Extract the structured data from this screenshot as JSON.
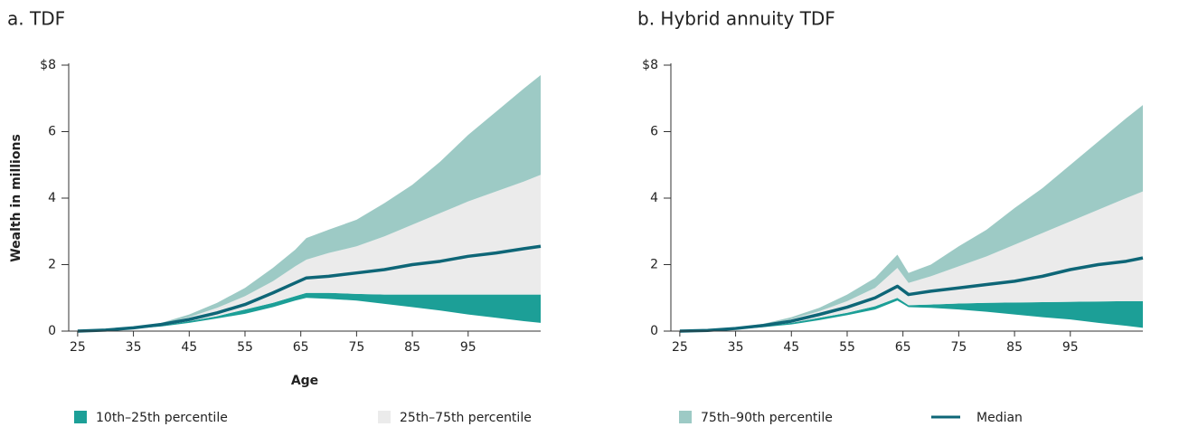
{
  "chart_data": [
    {
      "type": "area",
      "title": "a. TDF",
      "xlabel": "Age",
      "ylabel": "Wealth in millions",
      "x": [
        25,
        30,
        35,
        40,
        45,
        50,
        55,
        60,
        64,
        66,
        70,
        75,
        80,
        85,
        90,
        95,
        100,
        105,
        108
      ],
      "xlim": [
        23.4,
        108
      ],
      "xticks": [
        25,
        35,
        45,
        55,
        65,
        75,
        85,
        95
      ],
      "ylim": [
        0,
        8
      ],
      "yticks": [
        0,
        2,
        4,
        6,
        {
          "value": 8,
          "label": "$8"
        }
      ],
      "bands": [
        {
          "lower": [
            0,
            0.02,
            0.07,
            0.14,
            0.25,
            0.38,
            0.52,
            0.72,
            0.92,
            1.0,
            0.97,
            0.92,
            0.82,
            0.72,
            0.62,
            0.5,
            0.4,
            0.3,
            0.25
          ],
          "upper": [
            0,
            0.02,
            0.08,
            0.16,
            0.3,
            0.45,
            0.65,
            0.85,
            1.05,
            1.15,
            1.15,
            1.12,
            1.1,
            1.1,
            1.1,
            1.1,
            1.1,
            1.1,
            1.1
          ]
        },
        {
          "lower": [
            0,
            0.02,
            0.08,
            0.16,
            0.3,
            0.45,
            0.65,
            0.85,
            1.05,
            1.15,
            1.15,
            1.12,
            1.1,
            1.1,
            1.1,
            1.1,
            1.1,
            1.1,
            1.1
          ],
          "upper": [
            0,
            0.03,
            0.1,
            0.22,
            0.42,
            0.7,
            1.05,
            1.5,
            1.95,
            2.15,
            2.35,
            2.55,
            2.85,
            3.2,
            3.55,
            3.9,
            4.2,
            4.5,
            4.7
          ]
        },
        {
          "lower": [
            0,
            0.03,
            0.1,
            0.22,
            0.42,
            0.7,
            1.05,
            1.5,
            1.95,
            2.15,
            2.35,
            2.55,
            2.85,
            3.2,
            3.55,
            3.9,
            4.2,
            4.5,
            4.7
          ],
          "upper": [
            0,
            0.03,
            0.12,
            0.25,
            0.5,
            0.85,
            1.3,
            1.9,
            2.45,
            2.8,
            3.05,
            3.35,
            3.85,
            4.4,
            5.1,
            5.9,
            6.6,
            7.3,
            7.7
          ]
        }
      ],
      "median": [
        0,
        0.03,
        0.1,
        0.2,
        0.35,
        0.55,
        0.8,
        1.15,
        1.45,
        1.6,
        1.65,
        1.75,
        1.85,
        2.0,
        2.1,
        2.25,
        2.35,
        2.48,
        2.55
      ]
    },
    {
      "type": "area",
      "title": "b. Hybrid annuity TDF",
      "x": [
        25,
        30,
        35,
        40,
        45,
        50,
        55,
        60,
        64,
        66,
        70,
        75,
        80,
        85,
        90,
        95,
        100,
        105,
        108
      ],
      "xlim": [
        23.4,
        108
      ],
      "xticks": [
        25,
        35,
        45,
        55,
        65,
        75,
        85,
        95
      ],
      "ylim": [
        0,
        8
      ],
      "yticks": [
        0,
        2,
        4,
        6,
        {
          "value": 8,
          "label": "$8"
        }
      ],
      "bands": [
        {
          "lower": [
            0,
            0.02,
            0.05,
            0.12,
            0.2,
            0.33,
            0.48,
            0.65,
            0.92,
            0.72,
            0.7,
            0.65,
            0.58,
            0.5,
            0.42,
            0.35,
            0.25,
            0.16,
            0.1
          ],
          "upper": [
            0,
            0.02,
            0.06,
            0.14,
            0.25,
            0.4,
            0.55,
            0.75,
            1.0,
            0.78,
            0.8,
            0.83,
            0.85,
            0.86,
            0.87,
            0.88,
            0.89,
            0.9,
            0.9
          ]
        },
        {
          "lower": [
            0,
            0.02,
            0.06,
            0.14,
            0.25,
            0.4,
            0.55,
            0.75,
            1.0,
            0.78,
            0.8,
            0.83,
            0.85,
            0.86,
            0.87,
            0.88,
            0.89,
            0.9,
            0.9
          ],
          "upper": [
            0,
            0.03,
            0.09,
            0.19,
            0.36,
            0.6,
            0.9,
            1.3,
            1.9,
            1.45,
            1.65,
            1.95,
            2.25,
            2.6,
            2.95,
            3.3,
            3.65,
            4.0,
            4.2
          ]
        },
        {
          "lower": [
            0,
            0.03,
            0.09,
            0.19,
            0.36,
            0.6,
            0.9,
            1.3,
            1.9,
            1.45,
            1.65,
            1.95,
            2.25,
            2.6,
            2.95,
            3.3,
            3.65,
            4.0,
            4.2
          ],
          "upper": [
            0,
            0.03,
            0.1,
            0.22,
            0.42,
            0.7,
            1.1,
            1.6,
            2.3,
            1.75,
            2.0,
            2.55,
            3.05,
            3.7,
            4.3,
            5.0,
            5.7,
            6.4,
            6.8
          ]
        }
      ],
      "median": [
        0,
        0.02,
        0.08,
        0.17,
        0.3,
        0.5,
        0.72,
        1.0,
        1.35,
        1.1,
        1.2,
        1.3,
        1.4,
        1.5,
        1.65,
        1.85,
        2.0,
        2.1,
        2.2
      ]
    }
  ],
  "legend": [
    {
      "name": "10th–25th percentile",
      "color": "#1c9f97"
    },
    {
      "name": "25th–75th percentile",
      "color": "#ebebeb"
    },
    {
      "name": "75th–90th percentile",
      "color": "#9dcac5"
    },
    {
      "name": "Median",
      "color": "#0e6677"
    }
  ]
}
